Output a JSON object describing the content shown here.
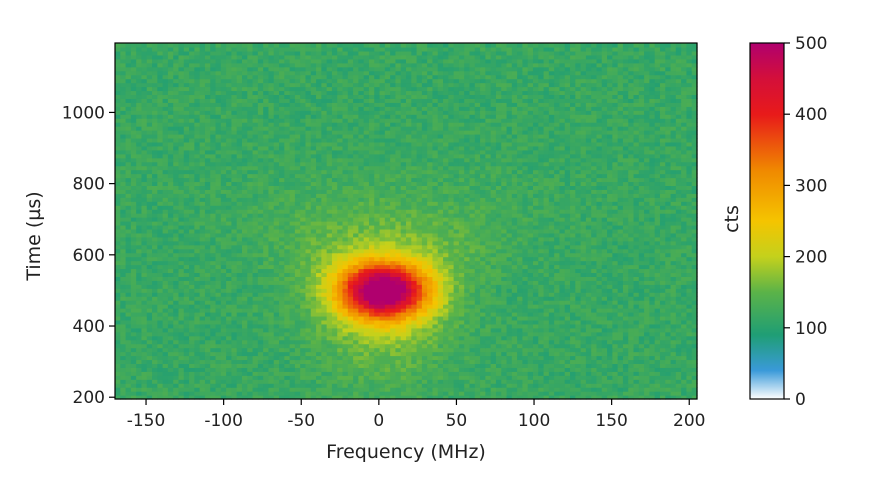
{
  "chart_data": {
    "type": "heatmap",
    "title": "",
    "xlabel": "Frequency (MHz)",
    "ylabel": "Time (µs)",
    "xlim": [
      -170,
      205
    ],
    "ylim": [
      195,
      1195
    ],
    "xticks": [
      -150,
      -100,
      -50,
      0,
      50,
      100,
      150,
      200
    ],
    "yticks": [
      200,
      400,
      600,
      800,
      1000
    ],
    "xtick_labels": [
      "-150",
      "-100",
      "-50",
      "0",
      "50",
      "100",
      "150",
      "200"
    ],
    "ytick_labels": [
      "200",
      "400",
      "600",
      "800",
      "1000"
    ],
    "colorbar": {
      "label": "cts",
      "range": [
        0,
        500
      ],
      "ticks": [
        0,
        100,
        200,
        300,
        400,
        500
      ],
      "tick_labels": [
        "0",
        "100",
        "200",
        "300",
        "400",
        "500"
      ],
      "colormap": [
        {
          "value": 0,
          "color": "#ffffff"
        },
        {
          "value": 40,
          "color": "#3a9ad9"
        },
        {
          "value": 90,
          "color": "#1f9e75"
        },
        {
          "value": 150,
          "color": "#5bb348"
        },
        {
          "value": 200,
          "color": "#c4d11c"
        },
        {
          "value": 250,
          "color": "#f5c400"
        },
        {
          "value": 320,
          "color": "#f08a00"
        },
        {
          "value": 400,
          "color": "#e81a1a"
        },
        {
          "value": 450,
          "color": "#d40f3a"
        },
        {
          "value": 500,
          "color": "#b0006e"
        }
      ]
    },
    "background_counts": 115,
    "peak": {
      "frequency": 3,
      "time": 500,
      "counts": 500
    },
    "grid": false
  }
}
